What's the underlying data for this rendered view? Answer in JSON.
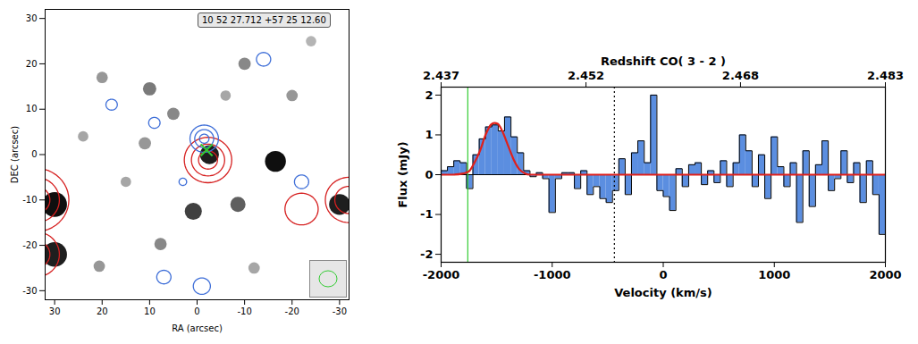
{
  "chart_data": [
    {
      "type": "contour_map",
      "annotation": "10 52 27.712 +57 25 12.60",
      "xlabel": "RA (arcsec)",
      "ylabel": "DEC (arcsec)",
      "xlim": [
        32,
        -32
      ],
      "ylim": [
        -32,
        32
      ],
      "xticks": [
        30,
        20,
        10,
        0,
        -10,
        -20,
        -30
      ],
      "yticks": [
        -30,
        -20,
        -10,
        0,
        10,
        20,
        30
      ],
      "sources": [
        {
          "ra": -16.5,
          "dec": -1.5,
          "radius": 2.2,
          "intensity": 0.95
        },
        {
          "ra": -2.6,
          "dec": 0,
          "radius": 2.0,
          "intensity": 0.9
        },
        {
          "ra": 30,
          "dec": -11,
          "radius": 2.6,
          "intensity": 0.95
        },
        {
          "ra": 30,
          "dec": -22,
          "radius": 2.6,
          "intensity": 0.9
        },
        {
          "ra": -30,
          "dec": -11,
          "radius": 2.2,
          "intensity": 0.9
        },
        {
          "ra": 0.8,
          "dec": -12.5,
          "radius": 1.8,
          "intensity": 0.8
        },
        {
          "ra": -8.6,
          "dec": -11,
          "radius": 1.6,
          "intensity": 0.7
        },
        {
          "ra": 10,
          "dec": 14.5,
          "radius": 1.4,
          "intensity": 0.6
        },
        {
          "ra": 5,
          "dec": 9,
          "radius": 1.3,
          "intensity": 0.55
        },
        {
          "ra": 20,
          "dec": 17,
          "radius": 1.2,
          "intensity": 0.5
        },
        {
          "ra": -10,
          "dec": 20,
          "radius": 1.3,
          "intensity": 0.55
        },
        {
          "ra": -20,
          "dec": 13,
          "radius": 1.2,
          "intensity": 0.5
        },
        {
          "ra": 11,
          "dec": 2.5,
          "radius": 1.3,
          "intensity": 0.5
        },
        {
          "ra": 7.7,
          "dec": -19.7,
          "radius": 1.3,
          "intensity": 0.55
        },
        {
          "ra": 20.6,
          "dec": -24.6,
          "radius": 1.2,
          "intensity": 0.5
        },
        {
          "ra": -12,
          "dec": -25,
          "radius": 1.2,
          "intensity": 0.45
        },
        {
          "ra": 24,
          "dec": 4,
          "radius": 1.1,
          "intensity": 0.45
        },
        {
          "ra": -24,
          "dec": 25,
          "radius": 1.1,
          "intensity": 0.4
        },
        {
          "ra": 15,
          "dec": -6,
          "radius": 1.1,
          "intensity": 0.45
        },
        {
          "ra": -6,
          "dec": 13,
          "radius": 1.1,
          "intensity": 0.45
        }
      ],
      "contours": [
        {
          "color": "#d62020",
          "ra": -2.3,
          "dec": -1.2,
          "radii": [
            2,
            3.5,
            5
          ]
        },
        {
          "color": "#d62020",
          "ra": 34,
          "dec": -10,
          "radii": [
            3,
            5,
            7
          ]
        },
        {
          "color": "#d62020",
          "ra": 34,
          "dec": -22,
          "radii": [
            3,
            5
          ]
        },
        {
          "color": "#d62020",
          "ra": -32,
          "dec": -10,
          "radii": [
            3,
            5
          ]
        },
        {
          "color": "#d62020",
          "ra": -22,
          "dec": -12,
          "radii": [
            3.5
          ]
        },
        {
          "color": "#3f6fd8",
          "ra": -1.5,
          "dec": 3.5,
          "radii": [
            1,
            2,
            3
          ]
        },
        {
          "color": "#3f6fd8",
          "ra": -14,
          "dec": 21,
          "radii": [
            1.5
          ]
        },
        {
          "color": "#3f6fd8",
          "ra": 9,
          "dec": 7,
          "radii": [
            1.2
          ]
        },
        {
          "color": "#3f6fd8",
          "ra": 18,
          "dec": 11,
          "radii": [
            1.2
          ]
        },
        {
          "color": "#3f6fd8",
          "ra": 7,
          "dec": -27,
          "radii": [
            1.5
          ]
        },
        {
          "color": "#3f6fd8",
          "ra": -1,
          "dec": -29,
          "radii": [
            1.8
          ]
        },
        {
          "color": "#3f6fd8",
          "ra": -22,
          "dec": -6,
          "radii": [
            1.5
          ]
        },
        {
          "color": "#3f6fd8",
          "ra": 3,
          "dec": -6,
          "radii": [
            0.8
          ]
        }
      ],
      "marker_point": {
        "ra": -2,
        "dec": 1,
        "color": "#33cc33",
        "marker": "x"
      }
    },
    {
      "type": "histogram",
      "x2label": "Redshift CO( 3 - 2 )",
      "xlabel": "Velocity (km/s)",
      "ylabel": "Flux (mJy)",
      "xlim": [
        -2000,
        2000
      ],
      "ylim": [
        -2.2,
        2.2
      ],
      "xticks": [
        -2000,
        -1000,
        0,
        1000,
        2000
      ],
      "yticks": [
        -2,
        -1,
        0,
        1,
        2
      ],
      "x2lim": [
        2.437,
        2.483
      ],
      "x2ticks": [
        2.437,
        2.452,
        2.468,
        2.483
      ],
      "color": "#5b8ee0",
      "bins": [
        -2000,
        -1943,
        -1886,
        -1829,
        -1771,
        -1714,
        -1657,
        -1600,
        -1543,
        -1486,
        -1429,
        -1371,
        -1314,
        -1257,
        -1200,
        -1143,
        -1086,
        -1029,
        -971,
        -914,
        -857,
        -800,
        -743,
        -686,
        -629,
        -571,
        -514,
        -457,
        -400,
        -343,
        -286,
        -229,
        -171,
        -114,
        -57,
        0,
        57,
        114,
        171,
        229,
        286,
        343,
        400,
        457,
        514,
        571,
        629,
        686,
        743,
        800,
        857,
        914,
        971,
        1029,
        1086,
        1143,
        1200,
        1257,
        1314,
        1371,
        1429,
        1486,
        1543,
        1600,
        1657,
        1714,
        1771,
        1829,
        1886,
        1943,
        2000
      ],
      "values": [
        0.1,
        0.2,
        0.35,
        0.3,
        -0.35,
        0.5,
        0.9,
        1.2,
        1.25,
        1.1,
        1.45,
        0.95,
        0.55,
        0.1,
        -0.05,
        0.05,
        -0.1,
        -0.95,
        -0.1,
        0.05,
        0.05,
        -0.35,
        0.1,
        -0.5,
        -0.3,
        -0.6,
        -0.7,
        -0.4,
        0.4,
        -0.5,
        0.55,
        0.85,
        0.3,
        2.0,
        -0.4,
        -0.55,
        -0.9,
        0.15,
        -0.3,
        0.25,
        0.3,
        -0.25,
        0.1,
        -0.2,
        0.35,
        -0.3,
        0.3,
        1.0,
        0.6,
        -0.3,
        0.5,
        -0.6,
        0.95,
        0.2,
        -0.3,
        0.3,
        -1.2,
        0.6,
        -0.8,
        0.25,
        0.85,
        -0.4,
        -0.1,
        0.6,
        -0.2,
        0.3,
        -0.7,
        0.35,
        -0.5,
        -1.5
      ],
      "fit": {
        "color": "#e0201b",
        "x": [
          -2000,
          -1900,
          -1800,
          -1750,
          -1700,
          -1650,
          -1600,
          -1550,
          -1520,
          -1490,
          -1450,
          -1400,
          -1350,
          -1300,
          -1250,
          -1200,
          2000
        ],
        "values": [
          0,
          0,
          0.03,
          0.08,
          0.3,
          0.6,
          1.0,
          1.26,
          1.3,
          1.28,
          1.1,
          0.75,
          0.4,
          0.15,
          0.04,
          0,
          0
        ]
      },
      "lines": [
        {
          "x": -1760,
          "color": "#33cc33",
          "line_style": "solid"
        },
        {
          "x": -440,
          "color": "#000000",
          "line_style": "dotted"
        }
      ]
    }
  ]
}
